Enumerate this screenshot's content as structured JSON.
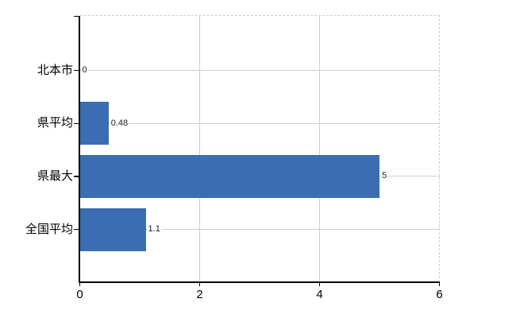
{
  "chart_data": {
    "type": "bar",
    "orientation": "horizontal",
    "title": "",
    "xlabel": "",
    "ylabel": "",
    "categories": [
      "北本市",
      "県平均",
      "県最大",
      "全国平均"
    ],
    "values": [
      0,
      0.48,
      5,
      1.1
    ],
    "value_labels": [
      "0",
      "0.48",
      "5",
      "1.1"
    ],
    "xlim": [
      0,
      6
    ],
    "xticks": [
      0,
      2,
      4,
      6
    ],
    "xtick_labels": [
      "0",
      "2",
      "4",
      "6"
    ],
    "grid": true,
    "legend": false,
    "colors": {
      "bar": "#3b6db2",
      "gridline": "#cfcfcf",
      "dashed_border": "#cccccc",
      "axis": "#000000",
      "text": "#1a1a1a",
      "background": "#ffffff"
    }
  }
}
